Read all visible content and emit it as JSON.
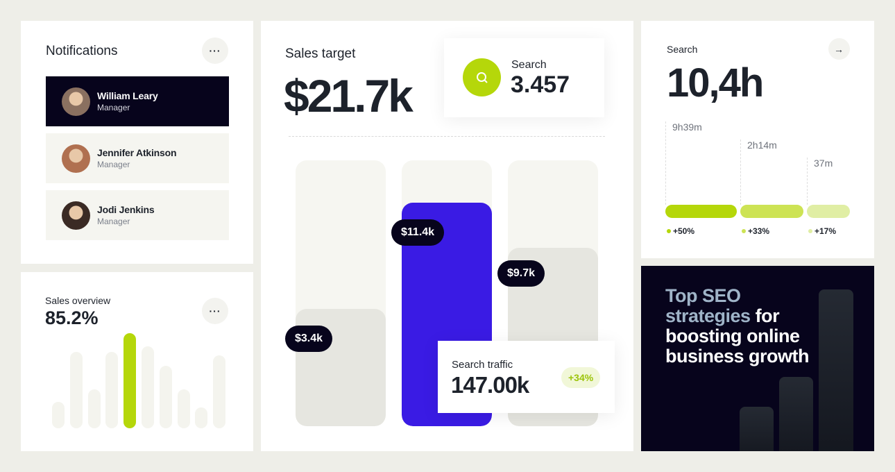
{
  "notifications": {
    "title": "Notifications",
    "more_label": "···",
    "items": [
      {
        "name": "William Leary",
        "role": "Manager",
        "active": true,
        "avatar_color": "#8a7060"
      },
      {
        "name": "Jennifer Atkinson",
        "role": "Manager",
        "active": false,
        "avatar_color": "#b07050"
      },
      {
        "name": "Jodi Jenkins",
        "role": "Manager",
        "active": false,
        "avatar_color": "#3a2a24"
      }
    ]
  },
  "sales_overview": {
    "title": "Sales overview",
    "value": "85.2%",
    "more_label": "···",
    "bars": [
      0.28,
      0.8,
      0.41,
      0.8,
      1.0,
      0.86,
      0.66,
      0.41,
      0.22,
      0.77
    ],
    "highlight_index": 4
  },
  "sales_target": {
    "title": "Sales target",
    "value": "$21.7k",
    "search": {
      "label": "Search",
      "value": "3.457",
      "icon": "search-icon"
    },
    "columns": [
      {
        "label": "$3.4k",
        "fill": 0.44,
        "color": "#e6e6e0"
      },
      {
        "label": "$11.4k",
        "fill": 0.84,
        "color": "#3a1be4"
      },
      {
        "label": "$9.7k",
        "fill": 0.67,
        "color": "#e6e6e0"
      }
    ],
    "traffic": {
      "label": "Search traffic",
      "value": "147.00k",
      "change": "+34%"
    }
  },
  "search_time": {
    "title": "Search",
    "value": "10,4h",
    "arrow": "→",
    "segments": [
      {
        "time": "9h39m",
        "change": "+50%",
        "color": "#b5d70a"
      },
      {
        "time": "2h14m",
        "change": "+33%",
        "color": "#cde354"
      },
      {
        "time": "37m",
        "change": "+17%",
        "color": "#e0eea4"
      }
    ]
  },
  "promo": {
    "highlight": "Top SEO strategies",
    "rest": " for boosting online business growth"
  },
  "colors": {
    "accent": "#b5d70a",
    "brand_blue": "#3a1be4",
    "dark": "#07041c",
    "background": "#eeeee8"
  }
}
